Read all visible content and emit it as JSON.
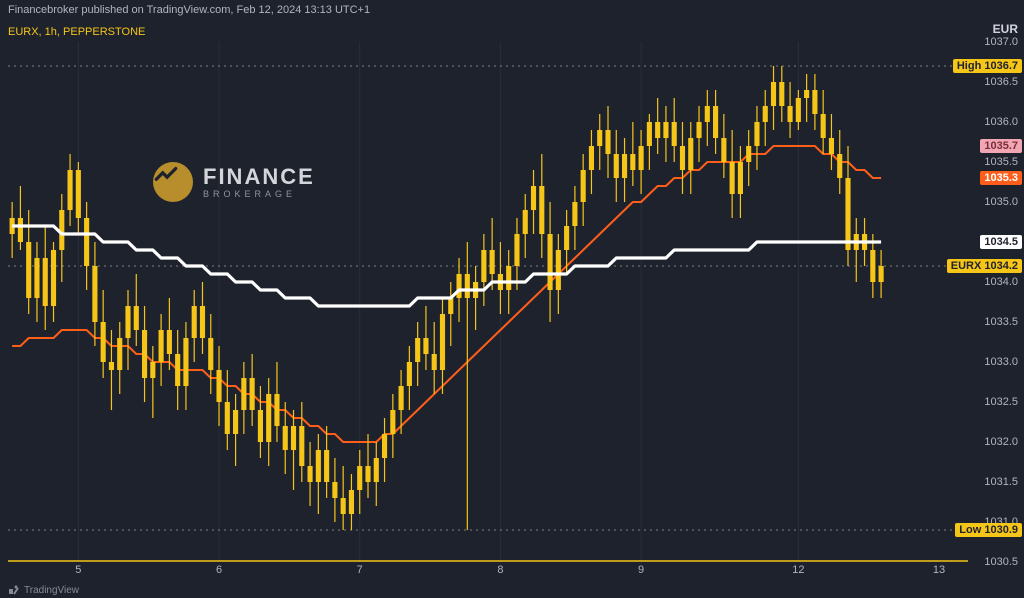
{
  "header": {
    "publish_line": "Financebroker published on TradingView.com, Feb 12, 2024 13:13 UTC+1",
    "ticker_line": "EURX, 1h, PEPPERSTONE"
  },
  "logo": {
    "main": "FINANCE",
    "sub": "BROKERAGE"
  },
  "branding": "TradingView",
  "colors": {
    "background": "#1e222d",
    "grid": "#2a2e39",
    "axis_text": "#b2b5be",
    "candle_body": "#f5c518",
    "candle_wick": "#f5c518",
    "ma_white": "#ffffff",
    "ma_orange": "#ff5e1a",
    "high_tag_bg": "#f5c518",
    "high_tag_fg": "#1e222d",
    "low_tag_bg": "#f5c518",
    "low_tag_fg": "#1e222d",
    "eurx_tag_bg": "#f5c518",
    "eurx_tag_fg": "#1e222d",
    "white_tag_bg": "#ffffff",
    "white_tag_fg": "#1e222d",
    "orange_tag_bg": "#ff5e1a",
    "orange_tag_fg": "#ffffff",
    "pink_tag_bg": "#f2a6b3",
    "pink_tag_fg": "#7a2d3a",
    "dashed_line": "#80837a"
  },
  "y_axis": {
    "currency": "EUR",
    "min": 1030.5,
    "max": 1037.0,
    "ticks": [
      1037.0,
      1036.5,
      1036.0,
      1035.5,
      1035.0,
      1034.5,
      1034.0,
      1033.5,
      1033.0,
      1032.5,
      1032.0,
      1031.5,
      1031.0,
      1030.5
    ]
  },
  "x_axis": {
    "ticks": [
      {
        "label": "5",
        "idx": 8
      },
      {
        "label": "6",
        "idx": 25
      },
      {
        "label": "7",
        "idx": 42
      },
      {
        "label": "8",
        "idx": 59
      },
      {
        "label": "9",
        "idx": 76
      },
      {
        "label": "12",
        "idx": 95
      },
      {
        "label": "13",
        "idx": 112
      }
    ],
    "session_lines": [
      8,
      25,
      42,
      59,
      76,
      95
    ],
    "total_slots": 116
  },
  "price_tags": [
    {
      "text": "High  1036.7",
      "value": 1036.7,
      "bg": "#f5c518",
      "fg": "#1e222d"
    },
    {
      "text": "1035.7",
      "value": 1035.7,
      "bg": "#f2a6b3",
      "fg": "#7a2d3a"
    },
    {
      "text": "1035.3",
      "value": 1035.3,
      "bg": "#ff5e1a",
      "fg": "#ffffff"
    },
    {
      "text": "1034.5",
      "value": 1034.5,
      "bg": "#ffffff",
      "fg": "#1e222d"
    },
    {
      "text": "EURX  1034.2",
      "value": 1034.2,
      "bg": "#f5c518",
      "fg": "#1e222d"
    },
    {
      "text": "Low  1030.9",
      "value": 1030.9,
      "bg": "#f5c518",
      "fg": "#1e222d"
    }
  ],
  "horizontal_dashed": [
    1036.7,
    1034.2,
    1030.9
  ],
  "chart": {
    "candle_width_ratio": 0.62,
    "wick_width": 1.2,
    "ma_white_width": 3.2,
    "ma_orange_width": 2.0,
    "candles": [
      {
        "o": 1034.6,
        "h": 1035.0,
        "l": 1034.3,
        "c": 1034.8
      },
      {
        "o": 1034.8,
        "h": 1035.2,
        "l": 1034.4,
        "c": 1034.5
      },
      {
        "o": 1034.5,
        "h": 1034.9,
        "l": 1033.6,
        "c": 1033.8
      },
      {
        "o": 1033.8,
        "h": 1034.5,
        "l": 1033.5,
        "c": 1034.3
      },
      {
        "o": 1034.3,
        "h": 1034.7,
        "l": 1033.4,
        "c": 1033.7
      },
      {
        "o": 1033.7,
        "h": 1034.5,
        "l": 1033.5,
        "c": 1034.4
      },
      {
        "o": 1034.4,
        "h": 1035.1,
        "l": 1034.0,
        "c": 1034.9
      },
      {
        "o": 1034.9,
        "h": 1035.6,
        "l": 1034.7,
        "c": 1035.4
      },
      {
        "o": 1035.4,
        "h": 1035.5,
        "l": 1034.6,
        "c": 1034.8
      },
      {
        "o": 1034.8,
        "h": 1035.0,
        "l": 1033.9,
        "c": 1034.2
      },
      {
        "o": 1034.2,
        "h": 1034.5,
        "l": 1033.2,
        "c": 1033.5
      },
      {
        "o": 1033.5,
        "h": 1033.9,
        "l": 1032.8,
        "c": 1033.0
      },
      {
        "o": 1033.0,
        "h": 1033.4,
        "l": 1032.4,
        "c": 1032.9
      },
      {
        "o": 1032.9,
        "h": 1033.5,
        "l": 1032.6,
        "c": 1033.3
      },
      {
        "o": 1033.3,
        "h": 1033.9,
        "l": 1032.9,
        "c": 1033.7
      },
      {
        "o": 1033.7,
        "h": 1034.1,
        "l": 1033.2,
        "c": 1033.4
      },
      {
        "o": 1033.4,
        "h": 1033.7,
        "l": 1032.5,
        "c": 1032.8
      },
      {
        "o": 1032.8,
        "h": 1033.2,
        "l": 1032.3,
        "c": 1033.0
      },
      {
        "o": 1033.0,
        "h": 1033.6,
        "l": 1032.7,
        "c": 1033.4
      },
      {
        "o": 1033.4,
        "h": 1033.8,
        "l": 1032.9,
        "c": 1033.1
      },
      {
        "o": 1033.1,
        "h": 1033.4,
        "l": 1032.4,
        "c": 1032.7
      },
      {
        "o": 1032.7,
        "h": 1033.5,
        "l": 1032.4,
        "c": 1033.3
      },
      {
        "o": 1033.3,
        "h": 1033.9,
        "l": 1033.0,
        "c": 1033.7
      },
      {
        "o": 1033.7,
        "h": 1034.0,
        "l": 1033.1,
        "c": 1033.3
      },
      {
        "o": 1033.3,
        "h": 1033.6,
        "l": 1032.6,
        "c": 1032.9
      },
      {
        "o": 1032.9,
        "h": 1033.2,
        "l": 1032.2,
        "c": 1032.5
      },
      {
        "o": 1032.5,
        "h": 1032.9,
        "l": 1031.9,
        "c": 1032.1
      },
      {
        "o": 1032.1,
        "h": 1032.6,
        "l": 1031.7,
        "c": 1032.4
      },
      {
        "o": 1032.4,
        "h": 1033.0,
        "l": 1032.1,
        "c": 1032.8
      },
      {
        "o": 1032.8,
        "h": 1033.1,
        "l": 1032.2,
        "c": 1032.4
      },
      {
        "o": 1032.4,
        "h": 1032.7,
        "l": 1031.8,
        "c": 1032.0
      },
      {
        "o": 1032.0,
        "h": 1032.8,
        "l": 1031.7,
        "c": 1032.6
      },
      {
        "o": 1032.6,
        "h": 1033.0,
        "l": 1032.0,
        "c": 1032.2
      },
      {
        "o": 1032.2,
        "h": 1032.5,
        "l": 1031.6,
        "c": 1031.9
      },
      {
        "o": 1031.9,
        "h": 1032.4,
        "l": 1031.4,
        "c": 1032.2
      },
      {
        "o": 1032.2,
        "h": 1032.5,
        "l": 1031.5,
        "c": 1031.7
      },
      {
        "o": 1031.7,
        "h": 1032.0,
        "l": 1031.2,
        "c": 1031.5
      },
      {
        "o": 1031.5,
        "h": 1032.1,
        "l": 1031.1,
        "c": 1031.9
      },
      {
        "o": 1031.9,
        "h": 1032.2,
        "l": 1031.3,
        "c": 1031.5
      },
      {
        "o": 1031.5,
        "h": 1031.8,
        "l": 1031.0,
        "c": 1031.3
      },
      {
        "o": 1031.3,
        "h": 1031.7,
        "l": 1030.9,
        "c": 1031.1
      },
      {
        "o": 1031.1,
        "h": 1031.6,
        "l": 1030.9,
        "c": 1031.4
      },
      {
        "o": 1031.4,
        "h": 1031.9,
        "l": 1031.1,
        "c": 1031.7
      },
      {
        "o": 1031.7,
        "h": 1032.1,
        "l": 1031.3,
        "c": 1031.5
      },
      {
        "o": 1031.5,
        "h": 1032.0,
        "l": 1031.2,
        "c": 1031.8
      },
      {
        "o": 1031.8,
        "h": 1032.3,
        "l": 1031.5,
        "c": 1032.1
      },
      {
        "o": 1032.1,
        "h": 1032.6,
        "l": 1031.8,
        "c": 1032.4
      },
      {
        "o": 1032.4,
        "h": 1032.9,
        "l": 1032.1,
        "c": 1032.7
      },
      {
        "o": 1032.7,
        "h": 1033.2,
        "l": 1032.4,
        "c": 1033.0
      },
      {
        "o": 1033.0,
        "h": 1033.5,
        "l": 1032.7,
        "c": 1033.3
      },
      {
        "o": 1033.3,
        "h": 1033.7,
        "l": 1032.9,
        "c": 1033.1
      },
      {
        "o": 1033.1,
        "h": 1033.5,
        "l": 1032.6,
        "c": 1032.9
      },
      {
        "o": 1032.9,
        "h": 1033.8,
        "l": 1032.6,
        "c": 1033.6
      },
      {
        "o": 1033.6,
        "h": 1034.0,
        "l": 1033.2,
        "c": 1033.8
      },
      {
        "o": 1033.8,
        "h": 1034.3,
        "l": 1033.5,
        "c": 1034.1
      },
      {
        "o": 1034.1,
        "h": 1034.5,
        "l": 1030.9,
        "c": 1033.8
      },
      {
        "o": 1033.8,
        "h": 1034.2,
        "l": 1033.4,
        "c": 1034.0
      },
      {
        "o": 1034.0,
        "h": 1034.6,
        "l": 1033.7,
        "c": 1034.4
      },
      {
        "o": 1034.4,
        "h": 1034.8,
        "l": 1033.9,
        "c": 1034.1
      },
      {
        "o": 1034.1,
        "h": 1034.5,
        "l": 1033.6,
        "c": 1033.9
      },
      {
        "o": 1033.9,
        "h": 1034.4,
        "l": 1033.6,
        "c": 1034.2
      },
      {
        "o": 1034.2,
        "h": 1034.8,
        "l": 1033.9,
        "c": 1034.6
      },
      {
        "o": 1034.6,
        "h": 1035.1,
        "l": 1034.3,
        "c": 1034.9
      },
      {
        "o": 1034.9,
        "h": 1035.4,
        "l": 1034.6,
        "c": 1035.2
      },
      {
        "o": 1035.2,
        "h": 1035.6,
        "l": 1034.3,
        "c": 1034.6
      },
      {
        "o": 1034.6,
        "h": 1035.0,
        "l": 1033.5,
        "c": 1033.9
      },
      {
        "o": 1033.9,
        "h": 1034.6,
        "l": 1033.6,
        "c": 1034.4
      },
      {
        "o": 1034.4,
        "h": 1034.9,
        "l": 1034.1,
        "c": 1034.7
      },
      {
        "o": 1034.7,
        "h": 1035.2,
        "l": 1034.4,
        "c": 1035.0
      },
      {
        "o": 1035.0,
        "h": 1035.6,
        "l": 1034.7,
        "c": 1035.4
      },
      {
        "o": 1035.4,
        "h": 1035.9,
        "l": 1035.1,
        "c": 1035.7
      },
      {
        "o": 1035.7,
        "h": 1036.1,
        "l": 1035.4,
        "c": 1035.9
      },
      {
        "o": 1035.9,
        "h": 1036.2,
        "l": 1035.3,
        "c": 1035.6
      },
      {
        "o": 1035.6,
        "h": 1035.9,
        "l": 1035.0,
        "c": 1035.3
      },
      {
        "o": 1035.3,
        "h": 1035.8,
        "l": 1035.0,
        "c": 1035.6
      },
      {
        "o": 1035.6,
        "h": 1036.0,
        "l": 1035.2,
        "c": 1035.4
      },
      {
        "o": 1035.4,
        "h": 1035.9,
        "l": 1035.1,
        "c": 1035.7
      },
      {
        "o": 1035.7,
        "h": 1036.1,
        "l": 1035.4,
        "c": 1036.0
      },
      {
        "o": 1036.0,
        "h": 1036.3,
        "l": 1035.6,
        "c": 1035.8
      },
      {
        "o": 1035.8,
        "h": 1036.2,
        "l": 1035.5,
        "c": 1036.0
      },
      {
        "o": 1036.0,
        "h": 1036.3,
        "l": 1035.5,
        "c": 1035.7
      },
      {
        "o": 1035.7,
        "h": 1036.0,
        "l": 1035.1,
        "c": 1035.4
      },
      {
        "o": 1035.4,
        "h": 1036.0,
        "l": 1035.1,
        "c": 1035.8
      },
      {
        "o": 1035.8,
        "h": 1036.2,
        "l": 1035.5,
        "c": 1036.0
      },
      {
        "o": 1036.0,
        "h": 1036.4,
        "l": 1035.7,
        "c": 1036.2
      },
      {
        "o": 1036.2,
        "h": 1036.4,
        "l": 1035.6,
        "c": 1035.8
      },
      {
        "o": 1035.8,
        "h": 1036.1,
        "l": 1035.3,
        "c": 1035.5
      },
      {
        "o": 1035.5,
        "h": 1035.9,
        "l": 1034.8,
        "c": 1035.1
      },
      {
        "o": 1035.1,
        "h": 1035.7,
        "l": 1034.8,
        "c": 1035.5
      },
      {
        "o": 1035.5,
        "h": 1035.9,
        "l": 1035.2,
        "c": 1035.7
      },
      {
        "o": 1035.7,
        "h": 1036.2,
        "l": 1035.4,
        "c": 1036.0
      },
      {
        "o": 1036.0,
        "h": 1036.4,
        "l": 1035.7,
        "c": 1036.2
      },
      {
        "o": 1036.2,
        "h": 1036.7,
        "l": 1035.9,
        "c": 1036.5
      },
      {
        "o": 1036.5,
        "h": 1036.7,
        "l": 1036.0,
        "c": 1036.2
      },
      {
        "o": 1036.2,
        "h": 1036.5,
        "l": 1035.8,
        "c": 1036.0
      },
      {
        "o": 1036.0,
        "h": 1036.4,
        "l": 1035.9,
        "c": 1036.3
      },
      {
        "o": 1036.3,
        "h": 1036.6,
        "l": 1036.0,
        "c": 1036.4
      },
      {
        "o": 1036.4,
        "h": 1036.6,
        "l": 1035.9,
        "c": 1036.1
      },
      {
        "o": 1036.1,
        "h": 1036.4,
        "l": 1035.6,
        "c": 1035.8
      },
      {
        "o": 1035.8,
        "h": 1036.1,
        "l": 1035.4,
        "c": 1035.6
      },
      {
        "o": 1035.6,
        "h": 1035.9,
        "l": 1035.1,
        "c": 1035.3
      },
      {
        "o": 1035.3,
        "h": 1035.7,
        "l": 1034.2,
        "c": 1034.4
      },
      {
        "o": 1034.4,
        "h": 1034.8,
        "l": 1034.0,
        "c": 1034.6
      },
      {
        "o": 1034.6,
        "h": 1034.8,
        "l": 1034.2,
        "c": 1034.4
      },
      {
        "o": 1034.4,
        "h": 1034.6,
        "l": 1033.8,
        "c": 1034.0
      },
      {
        "o": 1034.0,
        "h": 1034.4,
        "l": 1033.8,
        "c": 1034.2
      }
    ],
    "ma_white": [
      1034.7,
      1034.7,
      1034.7,
      1034.7,
      1034.7,
      1034.7,
      1034.6,
      1034.6,
      1034.6,
      1034.6,
      1034.6,
      1034.5,
      1034.5,
      1034.5,
      1034.5,
      1034.4,
      1034.4,
      1034.4,
      1034.3,
      1034.3,
      1034.3,
      1034.2,
      1034.2,
      1034.2,
      1034.1,
      1034.1,
      1034.1,
      1034.0,
      1034.0,
      1034.0,
      1033.9,
      1033.9,
      1033.9,
      1033.8,
      1033.8,
      1033.8,
      1033.8,
      1033.7,
      1033.7,
      1033.7,
      1033.7,
      1033.7,
      1033.7,
      1033.7,
      1033.7,
      1033.7,
      1033.7,
      1033.7,
      1033.7,
      1033.8,
      1033.8,
      1033.8,
      1033.8,
      1033.8,
      1033.9,
      1033.9,
      1033.9,
      1033.9,
      1034.0,
      1034.0,
      1034.0,
      1034.0,
      1034.0,
      1034.1,
      1034.1,
      1034.1,
      1034.1,
      1034.1,
      1034.2,
      1034.2,
      1034.2,
      1034.2,
      1034.2,
      1034.3,
      1034.3,
      1034.3,
      1034.3,
      1034.3,
      1034.3,
      1034.3,
      1034.4,
      1034.4,
      1034.4,
      1034.4,
      1034.4,
      1034.4,
      1034.4,
      1034.4,
      1034.4,
      1034.4,
      1034.5,
      1034.5,
      1034.5,
      1034.5,
      1034.5,
      1034.5,
      1034.5,
      1034.5,
      1034.5,
      1034.5,
      1034.5,
      1034.5,
      1034.5,
      1034.5,
      1034.5,
      1034.5
    ],
    "ma_orange": [
      1033.2,
      1033.2,
      1033.3,
      1033.3,
      1033.3,
      1033.3,
      1033.4,
      1033.4,
      1033.4,
      1033.4,
      1033.3,
      1033.3,
      1033.2,
      1033.2,
      1033.2,
      1033.1,
      1033.1,
      1033.0,
      1033.0,
      1033.0,
      1032.9,
      1032.9,
      1032.9,
      1032.9,
      1032.8,
      1032.8,
      1032.7,
      1032.7,
      1032.6,
      1032.6,
      1032.5,
      1032.5,
      1032.4,
      1032.4,
      1032.3,
      1032.3,
      1032.2,
      1032.2,
      1032.1,
      1032.1,
      1032.0,
      1032.0,
      1032.0,
      1032.0,
      1032.0,
      1032.1,
      1032.1,
      1032.2,
      1032.3,
      1032.4,
      1032.5,
      1032.6,
      1032.7,
      1032.8,
      1032.9,
      1033.0,
      1033.1,
      1033.2,
      1033.3,
      1033.4,
      1033.5,
      1033.6,
      1033.7,
      1033.8,
      1033.9,
      1034.0,
      1034.1,
      1034.2,
      1034.3,
      1034.4,
      1034.5,
      1034.6,
      1034.7,
      1034.8,
      1034.9,
      1035.0,
      1035.0,
      1035.1,
      1035.2,
      1035.2,
      1035.3,
      1035.3,
      1035.4,
      1035.4,
      1035.5,
      1035.5,
      1035.5,
      1035.5,
      1035.5,
      1035.6,
      1035.6,
      1035.6,
      1035.7,
      1035.7,
      1035.7,
      1035.7,
      1035.7,
      1035.7,
      1035.6,
      1035.6,
      1035.5,
      1035.5,
      1035.4,
      1035.4,
      1035.3,
      1035.3
    ]
  }
}
